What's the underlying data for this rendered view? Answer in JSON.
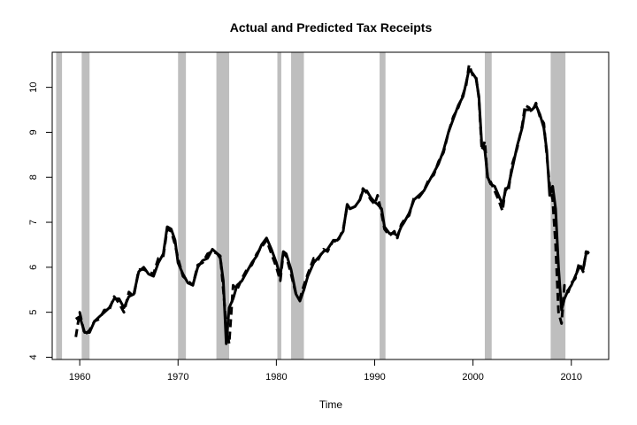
{
  "chart_data": {
    "type": "line",
    "title": "Actual and Predicted Tax Receipts",
    "xlabel": "Time",
    "ylabel": "",
    "xlim": [
      1957.2,
      2013.8
    ],
    "ylim": [
      3.95,
      10.78
    ],
    "x_ticks": [
      1960,
      1970,
      1980,
      1990,
      2000,
      2010
    ],
    "x_tick_labels": [
      "1960",
      "1970",
      "1980",
      "1990",
      "2000",
      "2010"
    ],
    "y_ticks": [
      4,
      5,
      6,
      7,
      8,
      9,
      10
    ],
    "y_tick_labels": [
      "4",
      "5",
      "6",
      "7",
      "8",
      "9",
      "10"
    ],
    "grid": false,
    "legend": "none",
    "shaded_periods": [
      [
        1957.6,
        1958.2
      ],
      [
        1960.2,
        1961.0
      ],
      [
        1970.0,
        1970.8
      ],
      [
        1973.9,
        1975.2
      ],
      [
        1980.1,
        1980.5
      ],
      [
        1981.5,
        1982.8
      ],
      [
        1990.5,
        1991.1
      ],
      [
        2001.2,
        2001.9
      ],
      [
        2007.9,
        2009.4
      ]
    ],
    "series": [
      {
        "style": "solid",
        "color": "#000000",
        "x": [
          1959.6,
          1960.0,
          1960.5,
          1961.0,
          1961.5,
          1962.0,
          1962.5,
          1963.0,
          1963.5,
          1964.0,
          1964.5,
          1965.0,
          1965.5,
          1966.0,
          1966.5,
          1967.0,
          1967.5,
          1968.0,
          1968.5,
          1968.9,
          1969.3,
          1969.7,
          1970.0,
          1970.5,
          1971.0,
          1971.5,
          1972.0,
          1972.5,
          1973.0,
          1973.5,
          1974.0,
          1974.3,
          1974.6,
          1974.9,
          1975.2,
          1975.6,
          1976.0,
          1976.5,
          1977.0,
          1977.5,
          1978.0,
          1978.5,
          1979.0,
          1979.5,
          1980.0,
          1980.4,
          1980.7,
          1981.0,
          1981.5,
          1982.0,
          1982.4,
          1982.8,
          1983.2,
          1983.8,
          1984.2,
          1984.8,
          1985.2,
          1985.8,
          1986.2,
          1986.8,
          1987.2,
          1987.5,
          1988.0,
          1988.5,
          1988.8,
          1989.2,
          1989.6,
          1990.0,
          1990.3,
          1990.7,
          1991.0,
          1991.5,
          1992.0,
          1992.3,
          1992.7,
          1993.0,
          1993.5,
          1994.0,
          1994.5,
          1995.0,
          1995.5,
          1996.0,
          1996.5,
          1997.0,
          1997.5,
          1998.0,
          1998.5,
          1999.0,
          1999.3,
          1999.6,
          2000.0,
          2000.3,
          2000.6,
          2000.9,
          2001.2,
          2001.5,
          2001.8,
          2002.2,
          2002.6,
          2003.0,
          2003.3,
          2003.6,
          2004.0,
          2004.5,
          2005.0,
          2005.3,
          2005.7,
          2006.0,
          2006.4,
          2006.8,
          2007.2,
          2007.5,
          2007.8,
          2008.1,
          2008.4,
          2008.7,
          2009.0,
          2009.3,
          2009.7,
          2010.0,
          2010.4,
          2010.8,
          2011.2,
          2011.5,
          2011.8
        ],
        "y": [
          4.85,
          4.9,
          4.55,
          4.55,
          4.8,
          4.9,
          5.0,
          5.1,
          5.3,
          5.3,
          5.1,
          5.35,
          5.4,
          5.9,
          6.0,
          5.85,
          5.8,
          6.1,
          6.3,
          6.9,
          6.85,
          6.6,
          6.1,
          5.85,
          5.65,
          5.6,
          6.0,
          6.15,
          6.2,
          6.4,
          6.3,
          6.2,
          5.7,
          4.3,
          5.1,
          5.3,
          5.6,
          5.7,
          5.9,
          6.1,
          6.25,
          6.5,
          6.65,
          6.4,
          6.1,
          5.8,
          6.35,
          6.3,
          5.95,
          5.4,
          5.25,
          5.5,
          5.8,
          6.1,
          6.2,
          6.35,
          6.4,
          6.6,
          6.6,
          6.8,
          7.4,
          7.3,
          7.35,
          7.5,
          7.7,
          7.7,
          7.55,
          7.45,
          7.4,
          7.3,
          6.9,
          6.75,
          6.75,
          6.7,
          6.9,
          7.0,
          7.2,
          7.5,
          7.6,
          7.7,
          7.9,
          8.1,
          8.3,
          8.6,
          9.0,
          9.3,
          9.6,
          9.8,
          10.1,
          10.4,
          10.3,
          10.2,
          9.8,
          8.7,
          8.6,
          8.0,
          7.85,
          7.8,
          7.6,
          7.4,
          7.7,
          7.8,
          8.2,
          8.7,
          9.1,
          9.5,
          9.5,
          9.5,
          9.6,
          9.4,
          9.1,
          8.6,
          7.6,
          7.8,
          7.3,
          6.0,
          5.05,
          5.3,
          5.5,
          5.6,
          5.8,
          6.0,
          5.95,
          6.3,
          6.35
        ]
      },
      {
        "style": "dashed",
        "color": "#000000",
        "x": [
          1959.6,
          1960.0,
          1960.5,
          1961.0,
          1961.5,
          1962.0,
          1962.5,
          1963.0,
          1963.5,
          1964.0,
          1964.5,
          1965.0,
          1965.5,
          1966.0,
          1966.5,
          1967.0,
          1967.5,
          1968.0,
          1968.5,
          1968.9,
          1969.3,
          1969.7,
          1970.0,
          1970.5,
          1971.0,
          1971.5,
          1972.0,
          1972.5,
          1973.0,
          1973.5,
          1974.0,
          1974.3,
          1974.6,
          1974.9,
          1975.2,
          1975.6,
          1976.0,
          1976.5,
          1977.0,
          1977.5,
          1978.0,
          1978.5,
          1979.0,
          1979.5,
          1980.0,
          1980.4,
          1980.7,
          1981.0,
          1981.5,
          1982.0,
          1982.4,
          1982.8,
          1983.2,
          1983.8,
          1984.2,
          1984.8,
          1985.2,
          1985.8,
          1986.2,
          1986.8,
          1987.2,
          1987.5,
          1988.0,
          1988.5,
          1988.8,
          1989.2,
          1989.6,
          1990.0,
          1990.3,
          1990.7,
          1991.0,
          1991.5,
          1992.0,
          1992.3,
          1992.7,
          1993.0,
          1993.5,
          1994.0,
          1994.5,
          1995.0,
          1995.5,
          1996.0,
          1996.5,
          1997.0,
          1997.5,
          1998.0,
          1998.5,
          1999.0,
          1999.3,
          1999.6,
          2000.0,
          2000.3,
          2000.6,
          2000.9,
          2001.2,
          2001.5,
          2001.8,
          2002.2,
          2002.6,
          2003.0,
          2003.3,
          2003.6,
          2004.0,
          2004.5,
          2005.0,
          2005.3,
          2005.7,
          2006.0,
          2006.4,
          2006.8,
          2007.2,
          2007.5,
          2007.8,
          2008.1,
          2008.4,
          2008.7,
          2009.0,
          2009.3,
          2009.7,
          2010.0,
          2010.4,
          2010.8,
          2011.2,
          2011.5,
          2011.8
        ],
        "y": [
          4.45,
          5.0,
          4.5,
          4.6,
          4.8,
          4.85,
          5.05,
          5.05,
          5.35,
          5.2,
          5.0,
          5.45,
          5.35,
          5.95,
          5.95,
          5.9,
          5.85,
          6.2,
          6.25,
          6.85,
          6.8,
          6.5,
          6.2,
          5.8,
          5.7,
          5.6,
          6.05,
          6.1,
          6.3,
          6.35,
          6.3,
          6.25,
          5.5,
          4.7,
          4.3,
          5.6,
          5.5,
          5.75,
          5.95,
          6.05,
          6.3,
          6.45,
          6.6,
          6.3,
          6.0,
          5.7,
          6.3,
          6.25,
          5.85,
          5.4,
          5.3,
          5.6,
          5.85,
          6.2,
          6.15,
          6.4,
          6.35,
          6.6,
          6.55,
          6.85,
          7.35,
          7.3,
          7.35,
          7.5,
          7.75,
          7.65,
          7.5,
          7.4,
          7.6,
          7.2,
          6.85,
          6.7,
          6.8,
          6.65,
          6.95,
          7.05,
          7.15,
          7.55,
          7.55,
          7.7,
          7.95,
          8.05,
          8.35,
          8.55,
          9.0,
          9.35,
          9.55,
          9.85,
          10.05,
          10.5,
          10.25,
          10.25,
          9.75,
          8.6,
          8.8,
          7.9,
          7.9,
          7.7,
          7.5,
          7.25,
          7.75,
          7.7,
          8.3,
          8.65,
          9.15,
          9.6,
          9.55,
          9.45,
          9.65,
          9.35,
          9.2,
          8.5,
          7.8,
          7.5,
          6.5,
          5.0,
          4.75,
          5.6,
          5.45,
          5.65,
          5.75,
          6.1,
          5.9,
          6.35,
          6.3
        ]
      }
    ]
  }
}
